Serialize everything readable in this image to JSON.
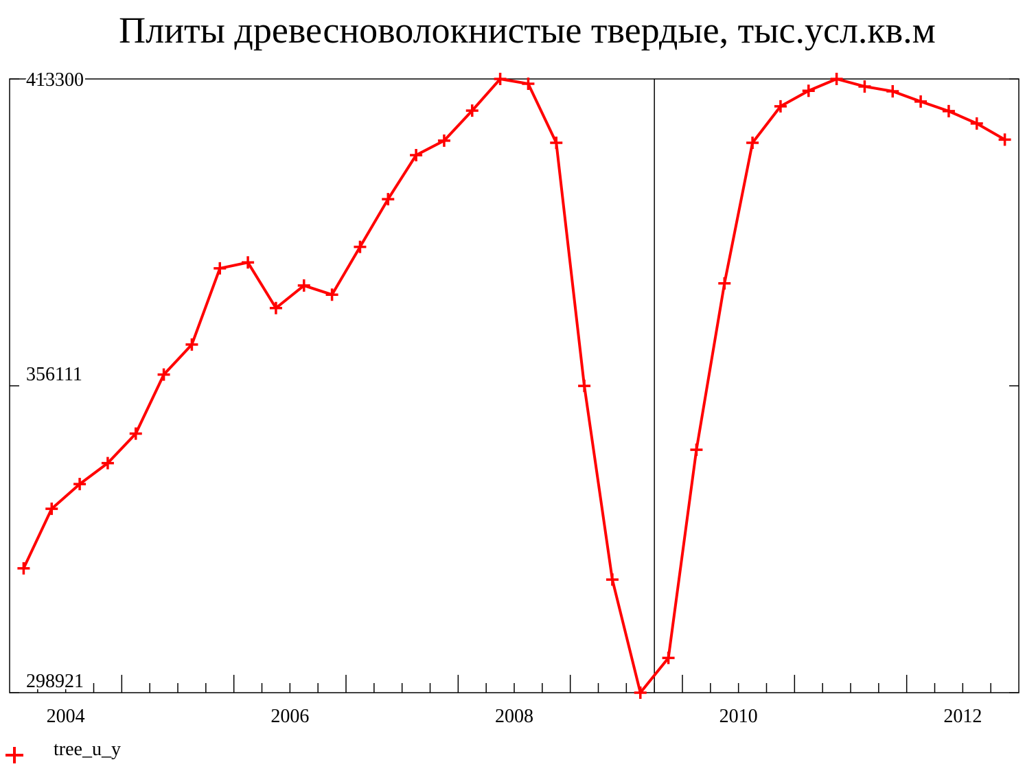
{
  "chart_data": {
    "type": "line",
    "title": "Плиты древесноволокнистые твердые, тыс.усл.кв.м",
    "x": [
      2003.625,
      2003.875,
      2004.125,
      2004.375,
      2004.625,
      2004.875,
      2005.125,
      2005.375,
      2005.625,
      2005.875,
      2006.125,
      2006.375,
      2006.625,
      2006.875,
      2007.125,
      2007.375,
      2007.625,
      2007.875,
      2008.125,
      2008.375,
      2008.625,
      2008.875,
      2009.125,
      2009.375,
      2009.625,
      2009.875,
      2010.125,
      2010.375,
      2010.625,
      2010.875,
      2011.125,
      2011.375,
      2011.625,
      2011.875,
      2012.125,
      2012.375
    ],
    "series": [
      {
        "name": "tree_u_y",
        "color": "#ff0000",
        "values": [
          322100,
          333200,
          337800,
          341700,
          347200,
          358200,
          363800,
          378000,
          379100,
          370600,
          374800,
          373100,
          382000,
          390900,
          399100,
          401800,
          407400,
          413300,
          412400,
          401400,
          356100,
          320000,
          298921,
          305400,
          344200,
          375200,
          401400,
          408200,
          411100,
          413300,
          411900,
          411000,
          409100,
          407300,
          405000,
          402000
        ]
      }
    ],
    "xlim": [
      2003.5,
      2012.5
    ],
    "xticks": [
      2004,
      2006,
      2008,
      2010,
      2012
    ],
    "xminor_ticks": [
      2003.75,
      2004,
      2004.25,
      2004.5,
      2004.75,
      2005,
      2005.25,
      2005.5,
      2005.75,
      2006,
      2006.25,
      2006.5,
      2006.75,
      2007,
      2007.25,
      2007.5,
      2007.75,
      2008,
      2008.25,
      2008.5,
      2008.75,
      2009,
      2009.25,
      2009.5,
      2009.75,
      2010,
      2010.25,
      2010.5,
      2010.75,
      2011,
      2011.25,
      2011.5,
      2011.75,
      2012,
      2012.25
    ],
    "ylim": [
      298921,
      413300
    ],
    "yticks": [
      298921,
      356111,
      413300
    ],
    "vline": 2009.25,
    "legend": "bottom-left"
  }
}
